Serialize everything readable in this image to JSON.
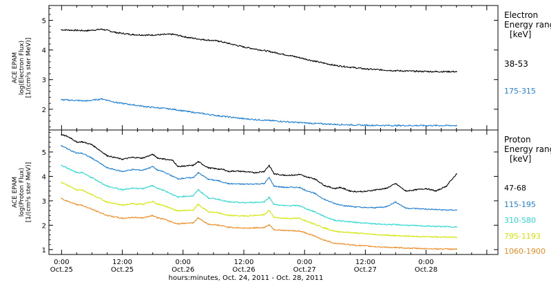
{
  "chart_data": [
    {
      "type": "line",
      "panel": "electron",
      "ylabel_lines": [
        "ACE EPAM",
        "log(Electron Flux)",
        "[1/(cm²s ster MeV)]"
      ],
      "ylim": [
        1.3,
        5.5
      ],
      "yticks": [
        2,
        3,
        4,
        5
      ],
      "legend_title_lines": [
        "Electron",
        "Energy ranges",
        "[keV]"
      ],
      "legend_placement": "right",
      "series": [
        {
          "name": "38-53",
          "color": "#000000",
          "x": [
            0,
            5,
            8,
            11,
            14,
            17,
            22,
            25,
            28,
            31,
            33,
            36,
            41,
            46,
            50,
            54,
            60,
            66,
            70,
            74,
            78
          ],
          "values": [
            4.68,
            4.65,
            4.7,
            4.58,
            4.52,
            4.5,
            4.53,
            4.42,
            4.35,
            4.3,
            4.22,
            4.1,
            3.95,
            3.78,
            3.62,
            3.48,
            3.36,
            3.3,
            3.28,
            3.27,
            3.27
          ]
        },
        {
          "name": "175-315",
          "color": "#1f7fd4",
          "x": [
            0,
            5,
            8,
            11,
            14,
            17,
            22,
            25,
            28,
            31,
            36,
            41,
            46,
            50,
            54,
            60,
            66,
            70,
            74,
            78
          ],
          "values": [
            2.32,
            2.28,
            2.35,
            2.22,
            2.15,
            2.08,
            2.0,
            1.92,
            1.85,
            1.78,
            1.68,
            1.62,
            1.56,
            1.52,
            1.49,
            1.46,
            1.45,
            1.45,
            1.45,
            1.45
          ]
        }
      ]
    },
    {
      "type": "line",
      "panel": "proton",
      "ylabel_lines": [
        "ACE EPAM",
        "log(Proton Flux)",
        "[1/(cm²s ster MeV)]"
      ],
      "ylim": [
        0.8,
        5.9
      ],
      "yticks": [
        1,
        2,
        3,
        4,
        5
      ],
      "legend_title_lines": [
        "Proton",
        "Energy ranges",
        "[keV]"
      ],
      "legend_placement": "right",
      "series": [
        {
          "name": "47-68",
          "color": "#000000",
          "x": [
            0,
            1,
            2,
            3,
            4,
            6,
            9,
            12,
            14,
            16,
            18,
            19,
            20,
            22,
            23,
            24,
            26,
            27,
            29,
            31,
            32,
            33,
            34,
            36,
            38,
            40,
            41,
            42,
            44,
            46,
            47,
            48,
            50,
            52,
            54,
            55,
            56,
            57,
            58,
            60,
            62,
            64,
            66,
            68,
            70,
            72,
            74,
            76,
            78
          ],
          "values": [
            5.7,
            5.65,
            5.55,
            5.4,
            5.42,
            5.3,
            4.85,
            4.7,
            4.78,
            4.75,
            4.9,
            4.75,
            4.72,
            4.65,
            4.4,
            4.42,
            4.45,
            4.6,
            4.35,
            4.3,
            4.28,
            4.2,
            4.22,
            4.2,
            4.15,
            4.2,
            4.45,
            4.1,
            4.05,
            4.05,
            4.08,
            4.0,
            3.9,
            3.62,
            3.5,
            3.55,
            3.48,
            3.4,
            3.38,
            3.38,
            3.45,
            3.5,
            3.7,
            3.4,
            3.45,
            3.5,
            3.4,
            3.6,
            4.1
          ]
        },
        {
          "name": "115-195",
          "color": "#1f7fd4",
          "x": [
            0,
            1,
            3,
            4,
            6,
            9,
            12,
            14,
            16,
            18,
            19,
            20,
            23,
            24,
            26,
            27,
            29,
            31,
            33,
            36,
            40,
            41,
            42,
            44,
            47,
            48,
            50,
            52,
            54,
            56,
            58,
            60,
            62,
            64,
            66,
            68,
            70,
            72,
            74,
            76,
            78
          ],
          "values": [
            5.25,
            5.15,
            4.95,
            4.95,
            4.75,
            4.35,
            4.2,
            4.28,
            4.25,
            4.4,
            4.25,
            4.2,
            3.9,
            3.92,
            3.95,
            4.15,
            3.88,
            3.82,
            3.7,
            3.68,
            3.7,
            3.95,
            3.6,
            3.55,
            3.55,
            3.45,
            3.3,
            3.05,
            2.88,
            2.8,
            2.75,
            2.72,
            2.72,
            2.75,
            2.95,
            2.7,
            2.68,
            2.66,
            2.64,
            2.62,
            2.62
          ]
        },
        {
          "name": "310-580",
          "color": "#2ad9d1",
          "x": [
            0,
            1,
            3,
            4,
            6,
            9,
            12,
            14,
            16,
            18,
            19,
            20,
            23,
            24,
            26,
            27,
            29,
            31,
            33,
            36,
            40,
            41,
            42,
            44,
            47,
            48,
            50,
            52,
            54,
            58,
            62,
            66,
            70,
            74,
            78
          ],
          "values": [
            4.45,
            4.35,
            4.15,
            4.15,
            3.95,
            3.6,
            3.45,
            3.52,
            3.5,
            3.62,
            3.5,
            3.45,
            3.15,
            3.18,
            3.2,
            3.45,
            3.12,
            3.06,
            2.95,
            2.92,
            2.95,
            3.15,
            2.85,
            2.8,
            2.8,
            2.7,
            2.55,
            2.35,
            2.2,
            2.12,
            2.05,
            2.02,
            1.98,
            1.95,
            1.93
          ]
        },
        {
          "name": "795-1193",
          "color": "#d2e600",
          "x": [
            0,
            1,
            3,
            4,
            6,
            9,
            12,
            14,
            16,
            18,
            19,
            20,
            23,
            24,
            26,
            27,
            29,
            31,
            33,
            36,
            40,
            41,
            42,
            44,
            47,
            48,
            50,
            52,
            54,
            58,
            62,
            66,
            70,
            74,
            78
          ],
          "values": [
            3.75,
            3.65,
            3.45,
            3.45,
            3.25,
            2.95,
            2.82,
            2.88,
            2.85,
            2.98,
            2.86,
            2.82,
            2.58,
            2.6,
            2.62,
            2.85,
            2.55,
            2.5,
            2.4,
            2.38,
            2.42,
            2.6,
            2.32,
            2.28,
            2.28,
            2.2,
            2.05,
            1.88,
            1.75,
            1.68,
            1.62,
            1.57,
            1.54,
            1.52,
            1.5
          ]
        },
        {
          "name": "1060-1900",
          "color": "#f08a1e",
          "x": [
            0,
            1,
            3,
            4,
            6,
            9,
            12,
            14,
            16,
            18,
            19,
            20,
            23,
            24,
            26,
            27,
            29,
            31,
            33,
            36,
            40,
            41,
            42,
            44,
            47,
            48,
            50,
            52,
            54,
            58,
            62,
            66,
            70,
            74,
            78
          ],
          "values": [
            3.1,
            3.0,
            2.85,
            2.82,
            2.65,
            2.4,
            2.28,
            2.32,
            2.3,
            2.4,
            2.3,
            2.26,
            2.05,
            2.08,
            2.1,
            2.3,
            2.04,
            2.0,
            1.92,
            1.88,
            1.9,
            2.02,
            1.82,
            1.78,
            1.76,
            1.7,
            1.55,
            1.38,
            1.26,
            1.18,
            1.12,
            1.08,
            1.05,
            1.03,
            1.02
          ]
        }
      ]
    }
  ],
  "x_axis": {
    "xlim": [
      -2.5,
      86.2
    ],
    "ticks": [
      {
        "x": 0,
        "time": "0:00",
        "date": "Oct.25"
      },
      {
        "x": 12,
        "time": "12:00",
        "date": "Oct.25"
      },
      {
        "x": 24,
        "time": "0:00",
        "date": "Oct.26"
      },
      {
        "x": 36,
        "time": "12:00",
        "date": "Oct.26"
      },
      {
        "x": 48,
        "time": "0:00",
        "date": "Oct.27"
      },
      {
        "x": 60,
        "time": "12:00",
        "date": "Oct.27"
      },
      {
        "x": 72,
        "time": "0:00",
        "date": "Oct.28"
      }
    ],
    "xlabel": "hours:minutes, Oct. 24, 2011 - Oct. 28, 2011"
  }
}
